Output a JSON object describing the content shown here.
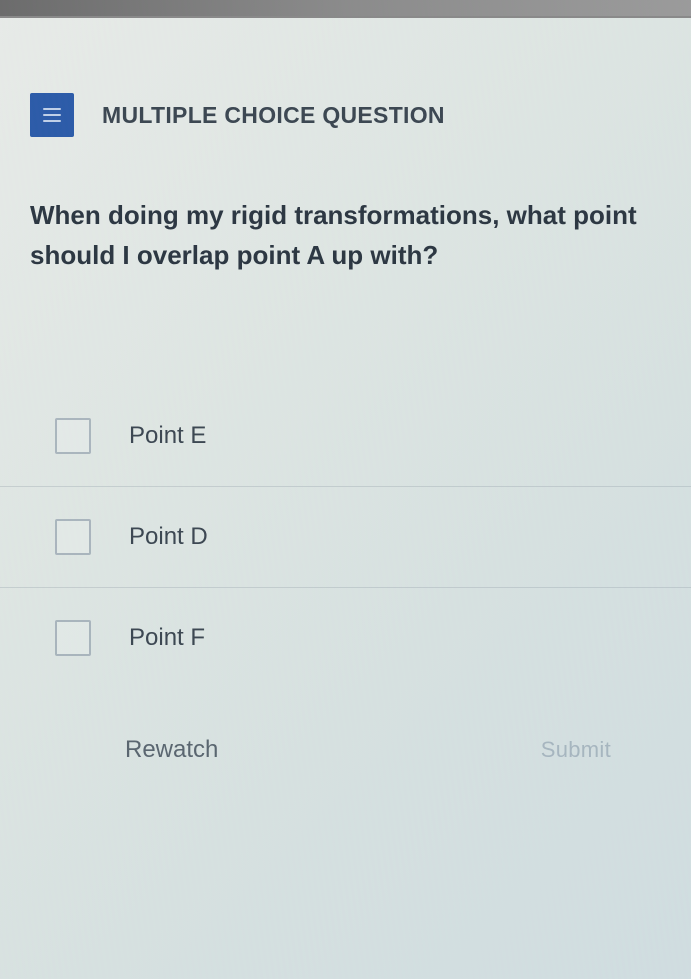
{
  "header": {
    "type_label": "MULTIPLE CHOICE QUESTION",
    "icon_bg": "#2a5aa8"
  },
  "question": {
    "text": "When doing my rigid transformations, what point should I overlap point A up with?"
  },
  "options": [
    {
      "label": "Point E"
    },
    {
      "label": "Point D"
    },
    {
      "label": "Point F"
    }
  ],
  "footer": {
    "rewatch_label": "Rewatch",
    "submit_label": "Submit"
  }
}
